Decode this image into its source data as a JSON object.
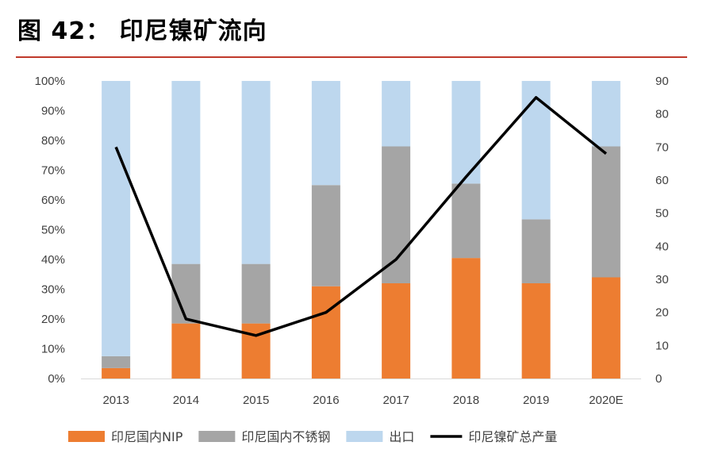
{
  "figure": {
    "title": "图 42： 印尼镍矿流向"
  },
  "chart_data": {
    "type": "bar",
    "stacked": true,
    "categories": [
      "2013",
      "2014",
      "2015",
      "2016",
      "2017",
      "2018",
      "2019",
      "2020E"
    ],
    "series": [
      {
        "name": "印尼国内NIP",
        "type": "bar",
        "axis": "left",
        "color": "#ed7d31",
        "values": [
          3.5,
          18.5,
          18.5,
          31,
          32,
          40.5,
          32,
          34
        ]
      },
      {
        "name": "印尼国内不锈钢",
        "type": "bar",
        "axis": "left",
        "color": "#a5a5a5",
        "values": [
          4,
          20,
          20,
          34,
          46,
          25,
          21.5,
          44
        ]
      },
      {
        "name": "出口",
        "type": "bar",
        "axis": "left",
        "color": "#bdd7ee",
        "values": [
          92.5,
          61.5,
          61.5,
          35,
          22,
          34.5,
          46.5,
          22
        ]
      },
      {
        "name": "印尼镍矿总产量",
        "type": "line",
        "axis": "right",
        "color": "#000000",
        "values": [
          70,
          18,
          13,
          20,
          36,
          61,
          85,
          68
        ]
      }
    ],
    "y_left": {
      "min": 0,
      "max": 100,
      "step": 10,
      "tick_labels": [
        "0%",
        "10%",
        "20%",
        "30%",
        "40%",
        "50%",
        "60%",
        "70%",
        "80%",
        "90%",
        "100%"
      ]
    },
    "y_right": {
      "min": 0,
      "max": 90,
      "step": 10,
      "tick_labels": [
        "0",
        "10",
        "20",
        "30",
        "40",
        "50",
        "60",
        "70",
        "80",
        "90"
      ]
    },
    "grid": false,
    "legend": "bottom"
  }
}
